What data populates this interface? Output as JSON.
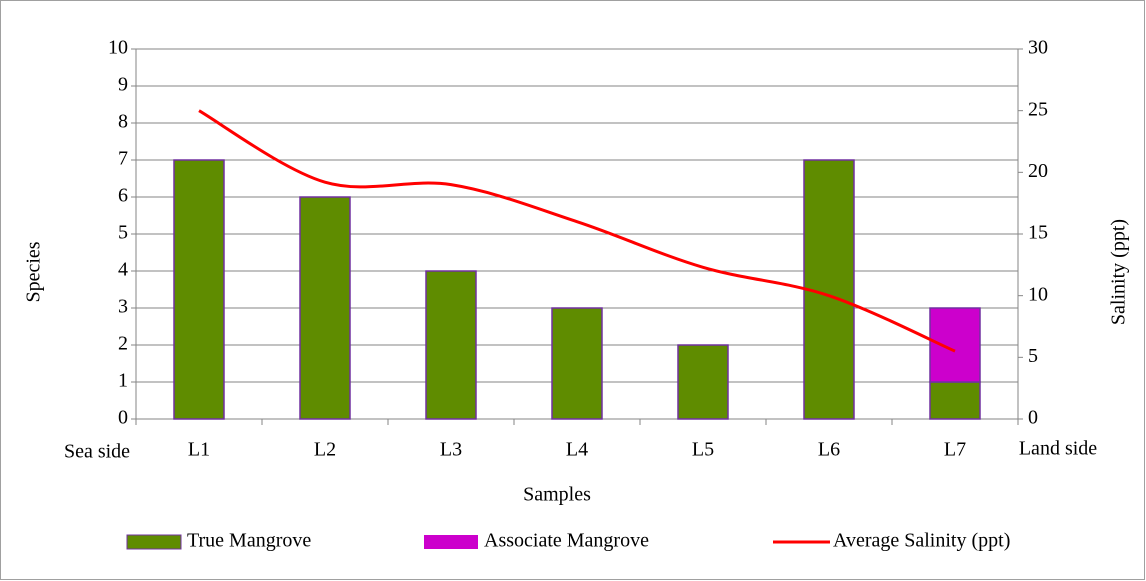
{
  "chart_data": {
    "type": "bar",
    "stacked": true,
    "categories": [
      "L1",
      "L2",
      "L3",
      "L4",
      "L5",
      "L6",
      "L7"
    ],
    "annotations": [
      "Sea side",
      "Land side"
    ],
    "x_label": "Samples",
    "y_label": "Species",
    "y2_label": "Salinity (ppt)",
    "series": [
      {
        "name": "True Mangrove",
        "color": "#5f8c00",
        "type": "bar",
        "values": [
          7,
          6,
          4,
          3,
          2,
          7,
          1
        ]
      },
      {
        "name": "Associate Mangrove",
        "color": "#cc00cc",
        "type": "bar",
        "values": [
          0,
          0,
          0,
          0,
          0,
          0,
          2
        ]
      },
      {
        "name": "Average Salinity (ppt)",
        "color": "#ff0000",
        "type": "line",
        "axis": "y2",
        "smooth": true,
        "values": [
          25,
          19.2,
          19,
          16,
          12.3,
          10,
          5.5
        ]
      }
    ],
    "ylim": [
      0,
      10
    ],
    "yticks": [
      0,
      1,
      2,
      3,
      4,
      5,
      6,
      7,
      8,
      9,
      10
    ],
    "y2lim": [
      0,
      30
    ],
    "y2ticks": [
      0,
      5,
      10,
      15,
      20,
      25,
      30
    ],
    "grid": true,
    "legend": "bottom"
  }
}
